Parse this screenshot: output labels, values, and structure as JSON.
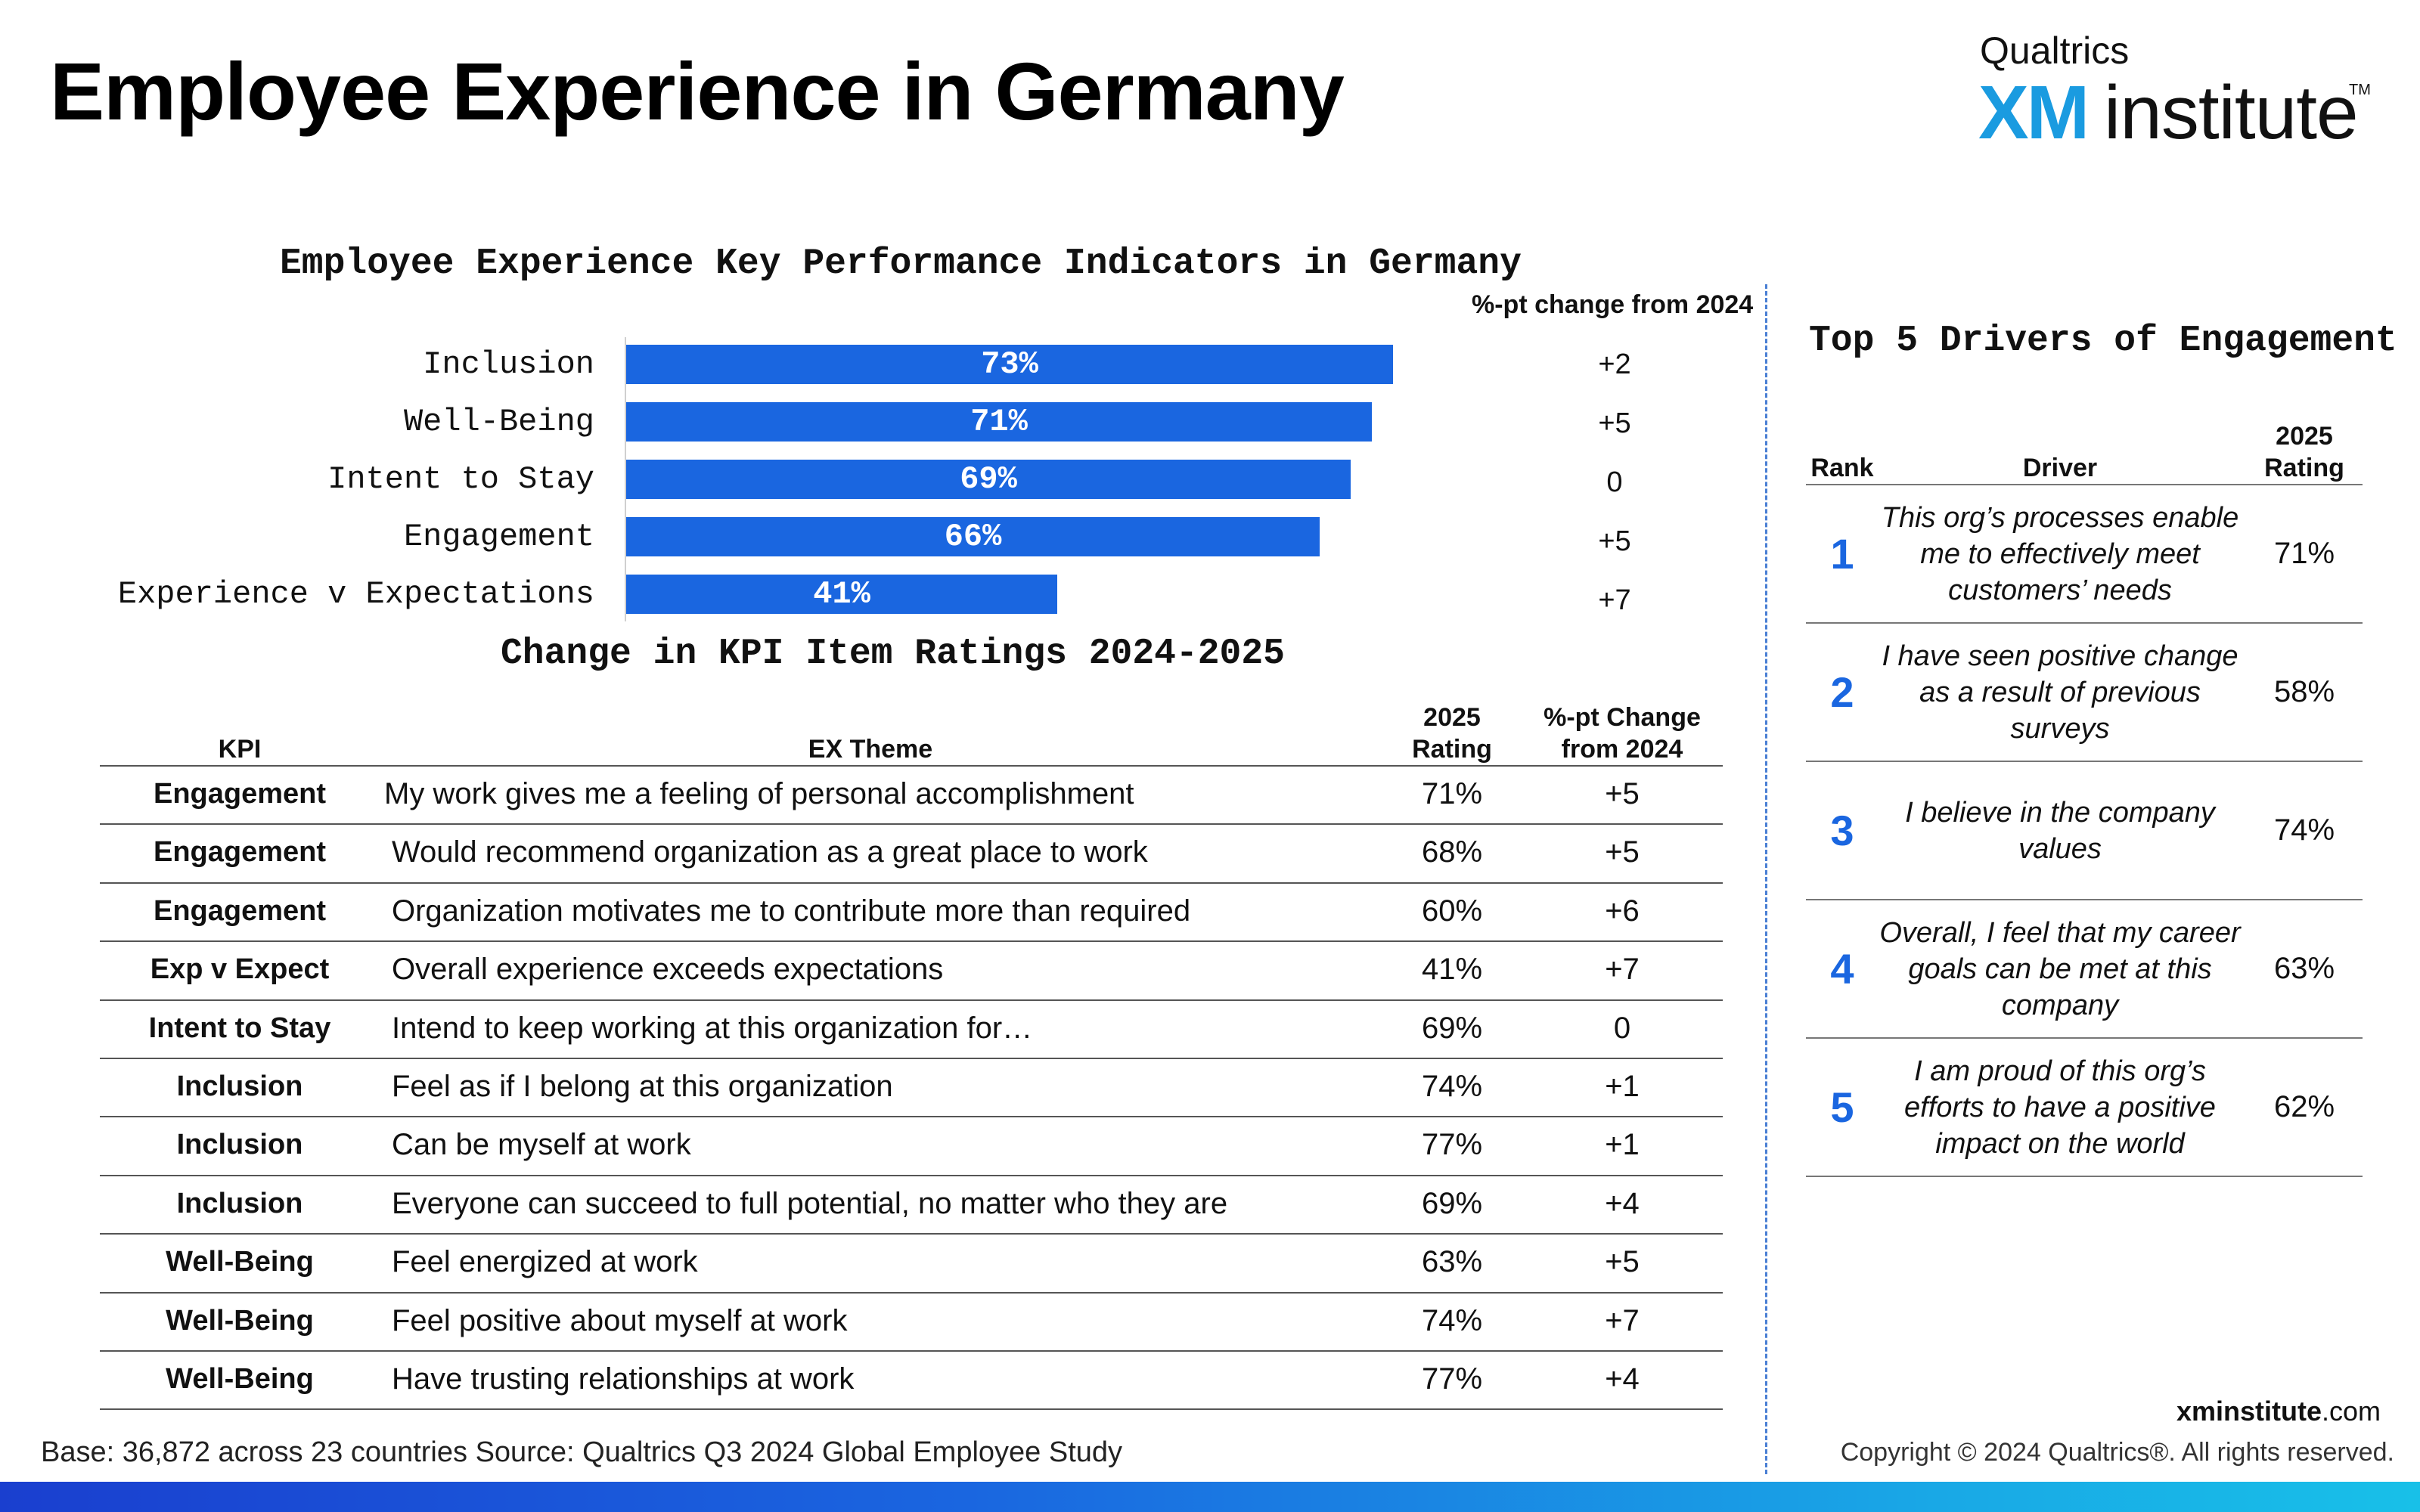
{
  "header": {
    "title": "Employee Experience in Germany",
    "logo_top": "Qualtrics",
    "logo_xm": "XM",
    "logo_institute": "institute",
    "logo_tm": "TM"
  },
  "chart_data": [
    {
      "type": "bar",
      "orientation": "horizontal",
      "title": "Employee Experience Key Performance Indicators in Germany",
      "categories": [
        "Inclusion",
        "Well-Being",
        "Intent to Stay",
        "Engagement",
        "Experience v Expectations"
      ],
      "values": [
        73,
        71,
        69,
        66,
        41
      ],
      "value_labels": [
        "73%",
        "71%",
        "69%",
        "66%",
        "41%"
      ],
      "xlim": [
        0,
        100
      ],
      "change_header": "%-pt change from 2024",
      "changes": [
        "+2",
        "+5",
        "0",
        "+5",
        "+7"
      ],
      "bar_color": "#1a66e0"
    },
    {
      "type": "table",
      "title": "Change in KPI Item Ratings 2024-2025",
      "headers": {
        "kpi": "KPI",
        "theme": "EX Theme",
        "rating_1": "2025",
        "rating_2": "Rating",
        "change_1": "%-pt Change",
        "change_2": "from 2024"
      },
      "rows": [
        {
          "kpi": "Engagement",
          "theme": "My work gives me a feeling of personal accomplishment",
          "rating": "71%",
          "change": "+5"
        },
        {
          "kpi": "Engagement",
          "theme": "Would recommend organization as a great place to work",
          "rating": "68%",
          "change": "+5"
        },
        {
          "kpi": "Engagement",
          "theme": "Organization motivates me to contribute more than required",
          "rating": "60%",
          "change": "+6"
        },
        {
          "kpi": "Exp v Expect",
          "theme": "Overall experience exceeds expectations",
          "rating": "41%",
          "change": "+7"
        },
        {
          "kpi": "Intent to Stay",
          "theme": "Intend to keep working at this organization for…",
          "rating": "69%",
          "change": "0"
        },
        {
          "kpi": "Inclusion",
          "theme": "Feel as if I belong at this organization",
          "rating": "74%",
          "change": "+1"
        },
        {
          "kpi": "Inclusion",
          "theme": "Can be myself at work",
          "rating": "77%",
          "change": "+1"
        },
        {
          "kpi": "Inclusion",
          "theme": "Everyone can succeed to full potential, no matter who they are",
          "rating": "69%",
          "change": "+4"
        },
        {
          "kpi": "Well-Being",
          "theme": "Feel energized at work",
          "rating": "63%",
          "change": "+5"
        },
        {
          "kpi": "Well-Being",
          "theme": "Feel positive about myself at work",
          "rating": "74%",
          "change": "+7"
        },
        {
          "kpi": "Well-Being",
          "theme": "Have trusting relationships at work",
          "rating": "77%",
          "change": "+4"
        }
      ]
    },
    {
      "type": "table",
      "title": "Top 5 Drivers of Engagement",
      "headers": {
        "rank": "Rank",
        "driver": "Driver",
        "rating_1": "2025",
        "rating_2": "Rating"
      },
      "rows": [
        {
          "rank": "1",
          "driver": "This org’s processes enable me to effectively meet customers’ needs",
          "rating": "71%"
        },
        {
          "rank": "2",
          "driver": "I have seen positive change as a result of previous surveys",
          "rating": "58%"
        },
        {
          "rank": "3",
          "driver": "I believe in the company values",
          "rating": "74%"
        },
        {
          "rank": "4",
          "driver": "Overall, I feel that my career goals can be met at this company",
          "rating": "63%"
        },
        {
          "rank": "5",
          "driver": "I am proud of this org’s efforts to have a positive impact on the world",
          "rating": "62%"
        }
      ]
    }
  ],
  "footer": {
    "base_label": "Base:",
    "base_text": "36,872 across 23 countries",
    "source_label": "Source:",
    "source_text": "Qualtrics Q3 2024 Global Employee Study",
    "site_bold": "xminstitute",
    "site_rest": ".com",
    "copyright": "Copyright © 2024 Qualtrics®. All rights reserved."
  },
  "colors": {
    "accent": "#1a66e0",
    "logo_xm": "#1a9be0",
    "divider": "#4a7fd4"
  }
}
